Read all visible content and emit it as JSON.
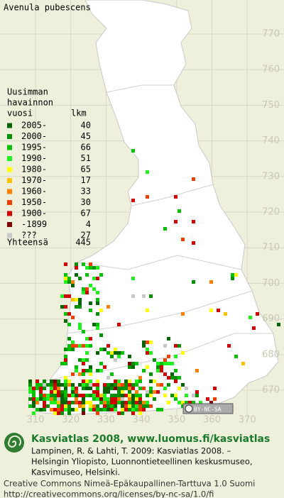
{
  "title": "Avenula pubescens",
  "legend": {
    "header": [
      "Uusimman",
      "havainnon",
      "vuosi",
      "lkm"
    ],
    "items": [
      {
        "label": "2005-",
        "count": 40,
        "color": "#006400"
      },
      {
        "label": "2000-",
        "count": 45,
        "color": "#009000"
      },
      {
        "label": "1995-",
        "count": 66,
        "color": "#00c000"
      },
      {
        "label": "1990-",
        "count": 51,
        "color": "#20f020"
      },
      {
        "label": "1980-",
        "count": 65,
        "color": "#ffff00"
      },
      {
        "label": "1970-",
        "count": 17,
        "color": "#ffc000"
      },
      {
        "label": "1960-",
        "count": 33,
        "color": "#ff8000"
      },
      {
        "label": "1950-",
        "count": 30,
        "color": "#f04000"
      },
      {
        "label": "1900-",
        "count": 67,
        "color": "#d00000"
      },
      {
        "label": "-1899",
        "count": 4,
        "color": "#800000"
      },
      {
        "label": "???",
        "count": 27,
        "color": "#c8c8c8"
      }
    ],
    "total_label": "Yhteensä",
    "total": 445
  },
  "grid_north": [
    770,
    760,
    750,
    740,
    730,
    720,
    710,
    700,
    690,
    680,
    670
  ],
  "grid_east": [
    310,
    320,
    330,
    340,
    350,
    360,
    370
  ],
  "license_badge": "BY-NC-SA",
  "footer": {
    "site": "Kasviatlas 2008, www.luomus.fi/kasviatlas",
    "citation": [
      "Lampinen, R. & Lahti, T. 2009: Kasviatlas 2008. –",
      "Helsingin Yliopisto, Luonnontieteellinen keskusmuseo,",
      "Kasvimuseo, Helsinki."
    ],
    "license": [
      "Creative Commons Nimeä-Epäkaupallinen-Tarttuva 1.0 Suomi",
      "http://creativecommons.org/licenses/by-nc-sa/1.0/fi"
    ]
  }
}
